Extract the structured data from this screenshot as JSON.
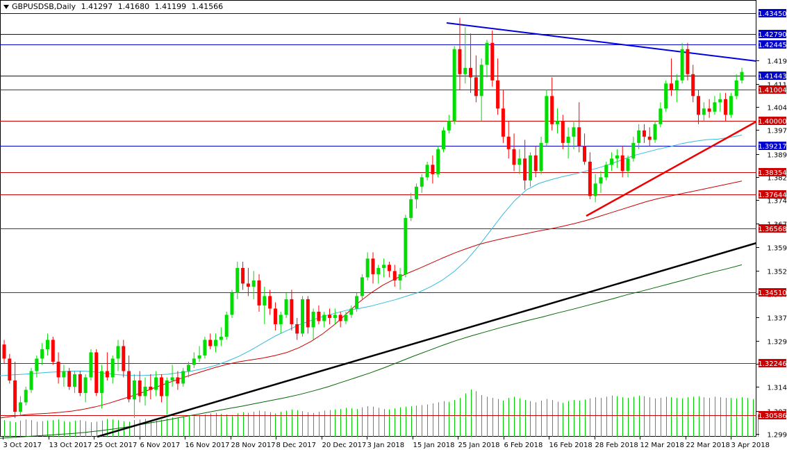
{
  "header": {
    "symbol": "GBPUSDSB,Daily",
    "open": "1.41297",
    "high": "1.41680",
    "low": "1.41199",
    "close": "1.41566"
  },
  "colors": {
    "bull": "#00dd00",
    "bear": "#ff0000",
    "ma_fast": "#33bbdd",
    "ma_mid": "#cc0000",
    "ma_slow": "#006600",
    "blue_level": "#0000cc",
    "red_level": "#cc0000",
    "trendline_blue": "#0000dd",
    "trendline_red": "#ee0000",
    "trendline_black": "#000000",
    "volume": "#00cc00",
    "axis_grid": "#000000"
  },
  "chart_data": {
    "type": "candlestick",
    "symbol": "GBPUSDSB",
    "timeframe": "Daily",
    "ylim": [
      1.299,
      1.4385
    ],
    "y_ticks": [
      "1.41950",
      "1.41190",
      "1.40450",
      "1.39710",
      "1.38950",
      "1.38210",
      "1.37470",
      "1.36710",
      "1.35970",
      "1.35210",
      "1.34470",
      "1.33730",
      "1.32970",
      "1.32230",
      "1.31490",
      "1.30730",
      "1.29990"
    ],
    "x_ticks": [
      "3 Oct 2017",
      "13 Oct 2017",
      "25 Oct 2017",
      "6 Nov 2017",
      "16 Nov 2017",
      "28 Nov 2017",
      "8 Dec 2017",
      "20 Dec 2017",
      "3 Jan 2018",
      "15 Jan 2018",
      "25 Jan 2018",
      "6 Feb 2018",
      "16 Feb 2018",
      "28 Feb 2018",
      "12 Mar 2018",
      "22 Mar 2018",
      "3 Apr 2018"
    ],
    "level_lines": [
      {
        "value": 1.4345,
        "label": "1.43450",
        "style": "blue"
      },
      {
        "value": 1.4279,
        "label": "1.42790",
        "style": "blue"
      },
      {
        "value": 1.42445,
        "label": "1.42445",
        "style": "blue"
      },
      {
        "value": 1.41443,
        "label": "1.41443",
        "style": "blue"
      },
      {
        "value": 1.41004,
        "label": "1.41004",
        "style": "red"
      },
      {
        "value": 1.4,
        "label": "1.40000",
        "style": "red"
      },
      {
        "value": 1.39217,
        "label": "1.39217",
        "style": "blue"
      },
      {
        "value": 1.38354,
        "label": "1.38354",
        "style": "red"
      },
      {
        "value": 1.37644,
        "label": "1.37644",
        "style": "red"
      },
      {
        "value": 1.36568,
        "label": "1.36568",
        "style": "red"
      },
      {
        "value": 1.3451,
        "label": "1.34510",
        "style": "red"
      },
      {
        "value": 1.32246,
        "label": "1.32246",
        "style": "red"
      },
      {
        "value": 1.30586,
        "label": "1.30586",
        "style": "red"
      }
    ],
    "candles": [
      [
        1.3285,
        1.33,
        1.3225,
        1.324
      ],
      [
        1.324,
        1.3255,
        1.316,
        1.317
      ],
      [
        1.317,
        1.323,
        1.305,
        1.307
      ],
      [
        1.307,
        1.312,
        1.306,
        1.31
      ],
      [
        1.31,
        1.315,
        1.309,
        1.314
      ],
      [
        1.314,
        1.321,
        1.313,
        1.32
      ],
      [
        1.32,
        1.325,
        1.318,
        1.324
      ],
      [
        1.324,
        1.329,
        1.322,
        1.327
      ],
      [
        1.327,
        1.332,
        1.325,
        1.33
      ],
      [
        1.33,
        1.331,
        1.322,
        1.323
      ],
      [
        1.323,
        1.326,
        1.316,
        1.318
      ],
      [
        1.318,
        1.322,
        1.315,
        1.32
      ],
      [
        1.32,
        1.321,
        1.314,
        1.315
      ],
      [
        1.315,
        1.32,
        1.313,
        1.319
      ],
      [
        1.319,
        1.32,
        1.312,
        1.313
      ],
      [
        1.313,
        1.319,
        1.31,
        1.318
      ],
      [
        1.318,
        1.327,
        1.317,
        1.326
      ],
      [
        1.326,
        1.327,
        1.312,
        1.313
      ],
      [
        1.313,
        1.322,
        1.308,
        1.32
      ],
      [
        1.32,
        1.326,
        1.317,
        1.318
      ],
      [
        1.318,
        1.325,
        1.316,
        1.324
      ],
      [
        1.324,
        1.33,
        1.32,
        1.328
      ],
      [
        1.328,
        1.33,
        1.318,
        1.32
      ],
      [
        1.32,
        1.325,
        1.31,
        1.311
      ],
      [
        1.311,
        1.319,
        1.305,
        1.317
      ],
      [
        1.317,
        1.32,
        1.31,
        1.312
      ],
      [
        1.312,
        1.318,
        1.309,
        1.315
      ],
      [
        1.315,
        1.319,
        1.311,
        1.314
      ],
      [
        1.314,
        1.32,
        1.312,
        1.318
      ],
      [
        1.318,
        1.319,
        1.31,
        1.312
      ],
      [
        1.312,
        1.318,
        1.306,
        1.317
      ],
      [
        1.317,
        1.322,
        1.315,
        1.318
      ],
      [
        1.318,
        1.32,
        1.314,
        1.316
      ],
      [
        1.316,
        1.321,
        1.315,
        1.32
      ],
      [
        1.32,
        1.323,
        1.318,
        1.322
      ],
      [
        1.322,
        1.326,
        1.321,
        1.324
      ],
      [
        1.324,
        1.328,
        1.323,
        1.325
      ],
      [
        1.325,
        1.331,
        1.324,
        1.33
      ],
      [
        1.33,
        1.332,
        1.327,
        1.328
      ],
      [
        1.328,
        1.332,
        1.326,
        1.33
      ],
      [
        1.33,
        1.334,
        1.328,
        1.331
      ],
      [
        1.331,
        1.339,
        1.33,
        1.338
      ],
      [
        1.338,
        1.346,
        1.337,
        1.345
      ],
      [
        1.345,
        1.355,
        1.343,
        1.353
      ],
      [
        1.353,
        1.355,
        1.346,
        1.348
      ],
      [
        1.348,
        1.353,
        1.344,
        1.347
      ],
      [
        1.347,
        1.352,
        1.343,
        1.349
      ],
      [
        1.349,
        1.351,
        1.339,
        1.341
      ],
      [
        1.341,
        1.347,
        1.335,
        1.344
      ],
      [
        1.344,
        1.346,
        1.338,
        1.34
      ],
      [
        1.34,
        1.342,
        1.333,
        1.335
      ],
      [
        1.335,
        1.339,
        1.332,
        1.338
      ],
      [
        1.338,
        1.345,
        1.337,
        1.343
      ],
      [
        1.343,
        1.346,
        1.333,
        1.335
      ],
      [
        1.335,
        1.337,
        1.33,
        1.332
      ],
      [
        1.332,
        1.344,
        1.331,
        1.343
      ],
      [
        1.343,
        1.344,
        1.332,
        1.334
      ],
      [
        1.334,
        1.34,
        1.33,
        1.339
      ],
      [
        1.339,
        1.341,
        1.335,
        1.336
      ],
      [
        1.336,
        1.339,
        1.334,
        1.338
      ],
      [
        1.338,
        1.34,
        1.335,
        1.337
      ],
      [
        1.337,
        1.34,
        1.335,
        1.338
      ],
      [
        1.338,
        1.339,
        1.334,
        1.336
      ],
      [
        1.336,
        1.339,
        1.335,
        1.338
      ],
      [
        1.338,
        1.341,
        1.337,
        1.34
      ],
      [
        1.34,
        1.345,
        1.339,
        1.344
      ],
      [
        1.344,
        1.351,
        1.343,
        1.35
      ],
      [
        1.35,
        1.358,
        1.349,
        1.356
      ],
      [
        1.356,
        1.358,
        1.348,
        1.351
      ],
      [
        1.351,
        1.354,
        1.348,
        1.353
      ],
      [
        1.353,
        1.356,
        1.35,
        1.354
      ],
      [
        1.354,
        1.355,
        1.35,
        1.352
      ],
      [
        1.352,
        1.354,
        1.347,
        1.349
      ],
      [
        1.349,
        1.353,
        1.346,
        1.351
      ],
      [
        1.351,
        1.37,
        1.35,
        1.369
      ],
      [
        1.369,
        1.377,
        1.368,
        1.375
      ],
      [
        1.375,
        1.38,
        1.372,
        1.379
      ],
      [
        1.379,
        1.383,
        1.377,
        1.382
      ],
      [
        1.382,
        1.387,
        1.381,
        1.386
      ],
      [
        1.386,
        1.389,
        1.38,
        1.383
      ],
      [
        1.383,
        1.392,
        1.382,
        1.391
      ],
      [
        1.391,
        1.398,
        1.39,
        1.397
      ],
      [
        1.397,
        1.402,
        1.396,
        1.4
      ],
      [
        1.4,
        1.424,
        1.399,
        1.423
      ],
      [
        1.423,
        1.433,
        1.41,
        1.415
      ],
      [
        1.415,
        1.43,
        1.412,
        1.417
      ],
      [
        1.417,
        1.428,
        1.409,
        1.414
      ],
      [
        1.414,
        1.421,
        1.406,
        1.408
      ],
      [
        1.408,
        1.42,
        1.4,
        1.418
      ],
      [
        1.418,
        1.426,
        1.414,
        1.425
      ],
      [
        1.425,
        1.429,
        1.411,
        1.413
      ],
      [
        1.413,
        1.42,
        1.402,
        1.404
      ],
      [
        1.404,
        1.41,
        1.393,
        1.395
      ],
      [
        1.395,
        1.4,
        1.388,
        1.391
      ],
      [
        1.391,
        1.396,
        1.384,
        1.386
      ],
      [
        1.386,
        1.391,
        1.383,
        1.388
      ],
      [
        1.388,
        1.394,
        1.378,
        1.381
      ],
      [
        1.381,
        1.39,
        1.379,
        1.389
      ],
      [
        1.389,
        1.392,
        1.382,
        1.384
      ],
      [
        1.384,
        1.395,
        1.383,
        1.393
      ],
      [
        1.393,
        1.41,
        1.392,
        1.408
      ],
      [
        1.408,
        1.414,
        1.397,
        1.399
      ],
      [
        1.399,
        1.404,
        1.396,
        1.4
      ],
      [
        1.4,
        1.402,
        1.391,
        1.393
      ],
      [
        1.393,
        1.398,
        1.388,
        1.395
      ],
      [
        1.395,
        1.4,
        1.391,
        1.398
      ],
      [
        1.398,
        1.406,
        1.39,
        1.392
      ],
      [
        1.392,
        1.396,
        1.386,
        1.387
      ],
      [
        1.387,
        1.39,
        1.375,
        1.376
      ],
      [
        1.376,
        1.383,
        1.374,
        1.38
      ],
      [
        1.38,
        1.384,
        1.377,
        1.382
      ],
      [
        1.382,
        1.387,
        1.381,
        1.386
      ],
      [
        1.386,
        1.39,
        1.384,
        1.388
      ],
      [
        1.388,
        1.391,
        1.385,
        1.389
      ],
      [
        1.389,
        1.392,
        1.382,
        1.384
      ],
      [
        1.384,
        1.389,
        1.382,
        1.388
      ],
      [
        1.388,
        1.395,
        1.387,
        1.393
      ],
      [
        1.393,
        1.399,
        1.391,
        1.397
      ],
      [
        1.397,
        1.399,
        1.393,
        1.395
      ],
      [
        1.395,
        1.398,
        1.392,
        1.394
      ],
      [
        1.394,
        1.4,
        1.393,
        1.399
      ],
      [
        1.399,
        1.406,
        1.398,
        1.404
      ],
      [
        1.404,
        1.413,
        1.403,
        1.412
      ],
      [
        1.412,
        1.42,
        1.408,
        1.41
      ],
      [
        1.41,
        1.415,
        1.406,
        1.413
      ],
      [
        1.413,
        1.425,
        1.412,
        1.423
      ],
      [
        1.423,
        1.425,
        1.413,
        1.415
      ],
      [
        1.415,
        1.418,
        1.406,
        1.408
      ],
      [
        1.408,
        1.41,
        1.399,
        1.402
      ],
      [
        1.402,
        1.406,
        1.4,
        1.404
      ],
      [
        1.404,
        1.407,
        1.401,
        1.403
      ],
      [
        1.403,
        1.408,
        1.402,
        1.406
      ],
      [
        1.406,
        1.409,
        1.403,
        1.407
      ],
      [
        1.407,
        1.409,
        1.4,
        1.402
      ],
      [
        1.402,
        1.409,
        1.401,
        1.408
      ],
      [
        1.408,
        1.415,
        1.407,
        1.413
      ],
      [
        1.413,
        1.417,
        1.412,
        1.4157
      ]
    ],
    "ma_fast": [
      1.3185,
      1.3188,
      1.319,
      1.3193,
      1.3196,
      1.3198,
      1.32,
      1.32,
      1.3197,
      1.3192,
      1.3188,
      1.3186,
      1.3186,
      1.3188,
      1.319,
      1.3195,
      1.32,
      1.3208,
      1.3218,
      1.3232,
      1.3248,
      1.3268,
      1.329,
      1.3312,
      1.333,
      1.3348,
      1.3362,
      1.3375,
      1.3385,
      1.3395,
      1.34,
      1.3408,
      1.3418,
      1.3428,
      1.344,
      1.3452,
      1.347,
      1.3492,
      1.352,
      1.3555,
      1.36,
      1.365,
      1.37,
      1.3745,
      1.378,
      1.38,
      1.3812,
      1.3822,
      1.383,
      1.384,
      1.385,
      1.3862,
      1.3876,
      1.389,
      1.39,
      1.391,
      1.3918,
      1.3928,
      1.3935,
      1.394,
      1.3942,
      1.3948,
      1.3955
    ],
    "ma_mid": [
      1.305,
      1.3055,
      1.306,
      1.3063,
      1.3065,
      1.3068,
      1.3072,
      1.3078,
      1.3086,
      1.3096,
      1.3108,
      1.312,
      1.3133,
      1.3148,
      1.3162,
      1.3175,
      1.3188,
      1.32,
      1.3212,
      1.3222,
      1.323,
      1.3236,
      1.3242,
      1.325,
      1.326,
      1.3275,
      1.3295,
      1.332,
      1.335,
      1.3385,
      1.342,
      1.345,
      1.3475,
      1.3495,
      1.3512,
      1.3528,
      1.3545,
      1.3562,
      1.3578,
      1.3592,
      1.3605,
      1.3615,
      1.3624,
      1.3632,
      1.364,
      1.3648,
      1.3655,
      1.3663,
      1.3672,
      1.3682,
      1.3694,
      1.3706,
      1.3718,
      1.373,
      1.3742,
      1.3752,
      1.376,
      1.3768,
      1.3776,
      1.3784,
      1.3792,
      1.38,
      1.3808
    ],
    "ma_slow": [
      1.2985,
      1.2988,
      1.2991,
      1.2994,
      1.2997,
      1.3,
      1.3004,
      1.3009,
      1.3015,
      1.3022,
      1.303,
      1.3038,
      1.3046,
      1.3055,
      1.3063,
      1.3072,
      1.308,
      1.3088,
      1.3097,
      1.3106,
      1.3115,
      1.3125,
      1.3137,
      1.315,
      1.3165,
      1.318,
      1.3195,
      1.3212,
      1.323,
      1.3248,
      1.3265,
      1.3282,
      1.3298,
      1.3312,
      1.3325,
      1.3338,
      1.335,
      1.3362,
      1.3373,
      1.3385,
      1.3396,
      1.3408,
      1.342,
      1.3432,
      1.3445,
      1.3456,
      1.3468,
      1.348,
      1.3492,
      1.3505,
      1.3517,
      1.3528,
      1.354
    ],
    "volume": [
      0.3,
      0.28,
      0.26,
      0.29,
      0.31,
      0.3,
      0.27,
      0.28,
      0.29,
      0.3,
      0.31,
      0.28,
      0.27,
      0.29,
      0.3,
      0.28,
      0.26,
      0.27,
      0.29,
      0.32,
      0.31,
      0.3,
      0.28,
      0.27,
      0.3,
      0.31,
      0.32,
      0.3,
      0.29,
      0.31,
      0.33,
      0.35,
      0.34,
      0.36,
      0.38,
      0.37,
      0.39,
      0.4,
      0.42,
      0.43,
      0.41,
      0.4,
      0.39,
      0.42,
      0.44,
      0.43,
      0.45,
      0.47,
      0.46,
      0.44,
      0.42,
      0.45,
      0.47,
      0.49,
      0.48,
      0.46,
      0.44,
      0.43,
      0.45,
      0.47,
      0.48,
      0.49,
      0.5,
      0.52,
      0.51,
      0.5,
      0.53,
      0.55,
      0.54,
      0.52,
      0.5,
      0.49,
      0.51,
      0.53,
      0.54,
      0.55,
      0.56,
      0.57,
      0.58,
      0.6,
      0.62,
      0.64,
      0.63,
      0.66,
      0.7,
      0.78,
      0.85,
      0.82,
      0.75,
      0.72,
      0.7,
      0.68,
      0.65,
      0.7,
      0.72,
      0.69,
      0.66,
      0.64,
      0.62,
      0.65,
      0.68,
      0.66,
      0.63,
      0.61,
      0.64,
      0.66,
      0.65,
      0.67,
      0.69,
      0.71,
      0.7,
      0.72,
      0.74,
      0.73,
      0.71,
      0.7,
      0.72,
      0.74,
      0.73,
      0.71,
      0.69,
      0.7,
      0.72,
      0.71,
      0.7,
      0.69,
      0.71,
      0.72,
      0.73,
      0.71,
      0.7,
      0.72,
      0.71,
      0.7,
      0.7,
      0.69,
      0.71,
      0.7,
      0.68,
      0.4
    ]
  }
}
